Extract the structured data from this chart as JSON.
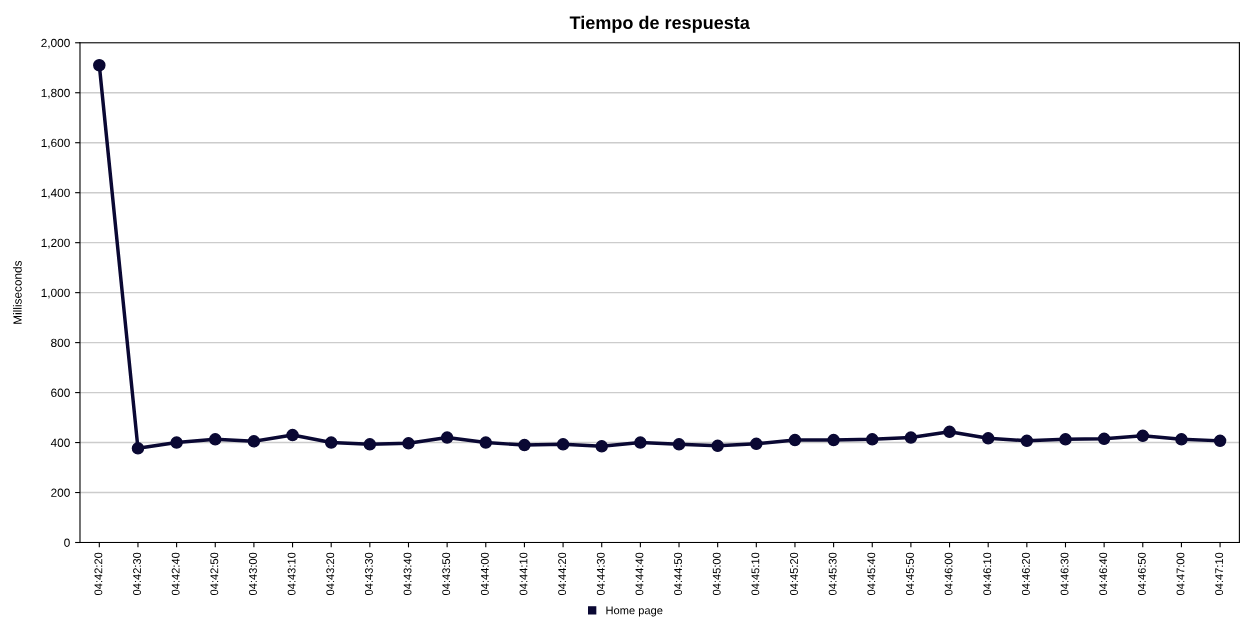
{
  "chart_data": {
    "type": "line",
    "title": "Tiempo de respuesta",
    "ylabel": "Milliseconds",
    "categories": [
      "04:42:20",
      "04:42:30",
      "04:42:40",
      "04:42:50",
      "04:43:00",
      "04:43:10",
      "04:43:20",
      "04:43:30",
      "04:43:40",
      "04:43:50",
      "04:44:00",
      "04:44:10",
      "04:44:20",
      "04:44:30",
      "04:44:40",
      "04:44:50",
      "04:45:00",
      "04:45:10",
      "04:45:20",
      "04:45:30",
      "04:45:40",
      "04:45:50",
      "04:46:00",
      "04:46:10",
      "04:46:20",
      "04:46:30",
      "04:46:40",
      "04:46:50",
      "04:47:00",
      "04:47:10"
    ],
    "series": [
      {
        "name": "Home page",
        "color": "#0a0833",
        "values": [
          1910,
          377,
          400,
          413,
          405,
          430,
          400,
          393,
          397,
          420,
          400,
          390,
          393,
          385,
          400,
          393,
          387,
          395,
          410,
          410,
          413,
          420,
          443,
          417,
          407,
          413,
          415,
          427,
          413,
          407
        ]
      }
    ],
    "ylim": [
      0,
      2000
    ],
    "yticks": [
      {
        "value": 0,
        "label": "0"
      },
      {
        "value": 200,
        "label": "200"
      },
      {
        "value": 400,
        "label": "400"
      },
      {
        "value": 600,
        "label": "600"
      },
      {
        "value": 800,
        "label": "800"
      },
      {
        "value": 1000,
        "label": "1,000"
      },
      {
        "value": 1200,
        "label": "1,200"
      },
      {
        "value": 1400,
        "label": "1,400"
      },
      {
        "value": 1600,
        "label": "1,600"
      },
      {
        "value": 1800,
        "label": "1,800"
      },
      {
        "value": 2000,
        "label": "2,000"
      }
    ],
    "grid": "y",
    "legend": "bottom",
    "marker": "circle",
    "line_style": "solid"
  }
}
